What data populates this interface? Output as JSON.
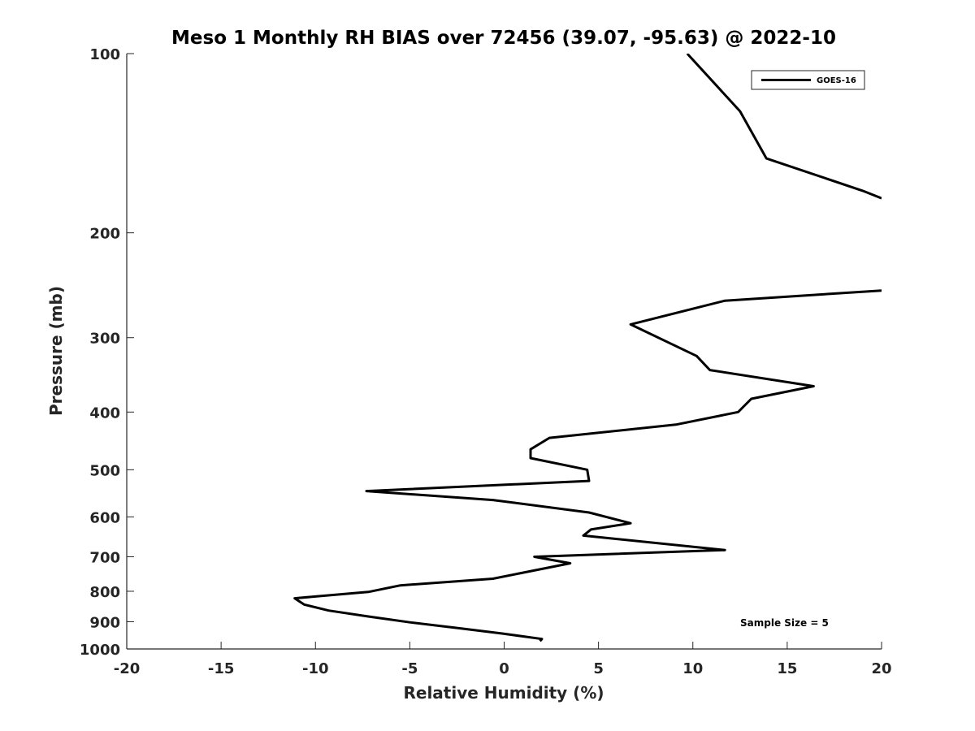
{
  "chart_data": {
    "type": "line",
    "title": "Meso 1 Monthly RH BIAS over 72456 (39.07, -95.63) @ 2022-10",
    "xlabel": "Relative Humidity (%)",
    "ylabel": "Pressure (mb)",
    "xlim": [
      -20,
      20
    ],
    "ylim": [
      100,
      1000
    ],
    "y_scale": "log",
    "y_reversed": true,
    "grid": false,
    "legend_position": "top-right",
    "x_ticks": [
      -20,
      -15,
      -10,
      -5,
      0,
      5,
      10,
      15,
      20
    ],
    "x_tick_labels": [
      "-20",
      "-15",
      "-10",
      "-5",
      "0",
      "5",
      "10",
      "15",
      "20"
    ],
    "y_ticks": [
      100,
      200,
      300,
      400,
      500,
      600,
      700,
      800,
      900,
      1000
    ],
    "y_tick_labels": [
      "100",
      "200",
      "300",
      "400",
      "500",
      "600",
      "700",
      "800",
      "900",
      "1000"
    ],
    "annotation": "Sample Size = 5",
    "series": [
      {
        "name": "GOES-16",
        "color": "#000000",
        "segments": [
          [
            {
              "x": 9.7,
              "y": 100
            },
            {
              "x": 12.5,
              "y": 125
            },
            {
              "x": 13.9,
              "y": 150
            },
            {
              "x": 19.0,
              "y": 170
            },
            {
              "x": 20.0,
              "y": 175
            }
          ],
          [
            {
              "x": 20.0,
              "y": 250
            },
            {
              "x": 11.7,
              "y": 260
            },
            {
              "x": 6.7,
              "y": 285
            },
            {
              "x": 10.2,
              "y": 322
            },
            {
              "x": 10.9,
              "y": 340
            },
            {
              "x": 16.4,
              "y": 362
            },
            {
              "x": 13.1,
              "y": 380
            },
            {
              "x": 12.4,
              "y": 400
            },
            {
              "x": 9.1,
              "y": 420
            },
            {
              "x": 2.4,
              "y": 442
            },
            {
              "x": 1.4,
              "y": 462
            },
            {
              "x": 1.4,
              "y": 478
            },
            {
              "x": 4.4,
              "y": 500
            },
            {
              "x": 4.5,
              "y": 522
            },
            {
              "x": -7.3,
              "y": 543
            },
            {
              "x": -0.6,
              "y": 562
            },
            {
              "x": 4.5,
              "y": 590
            },
            {
              "x": 6.7,
              "y": 615
            },
            {
              "x": 4.6,
              "y": 630
            },
            {
              "x": 4.2,
              "y": 645
            },
            {
              "x": 11.7,
              "y": 682
            },
            {
              "x": 1.6,
              "y": 700
            },
            {
              "x": 3.5,
              "y": 718
            },
            {
              "x": -0.6,
              "y": 762
            },
            {
              "x": -5.5,
              "y": 782
            },
            {
              "x": -7.2,
              "y": 802
            },
            {
              "x": -11.1,
              "y": 822
            },
            {
              "x": -10.6,
              "y": 842
            },
            {
              "x": -9.3,
              "y": 862
            },
            {
              "x": -7.2,
              "y": 882
            },
            {
              "x": -5.0,
              "y": 902
            },
            {
              "x": -2.5,
              "y": 922
            },
            {
              "x": -0.1,
              "y": 942
            },
            {
              "x": 2.0,
              "y": 962
            },
            {
              "x": 1.9,
              "y": 970
            }
          ]
        ]
      }
    ]
  }
}
